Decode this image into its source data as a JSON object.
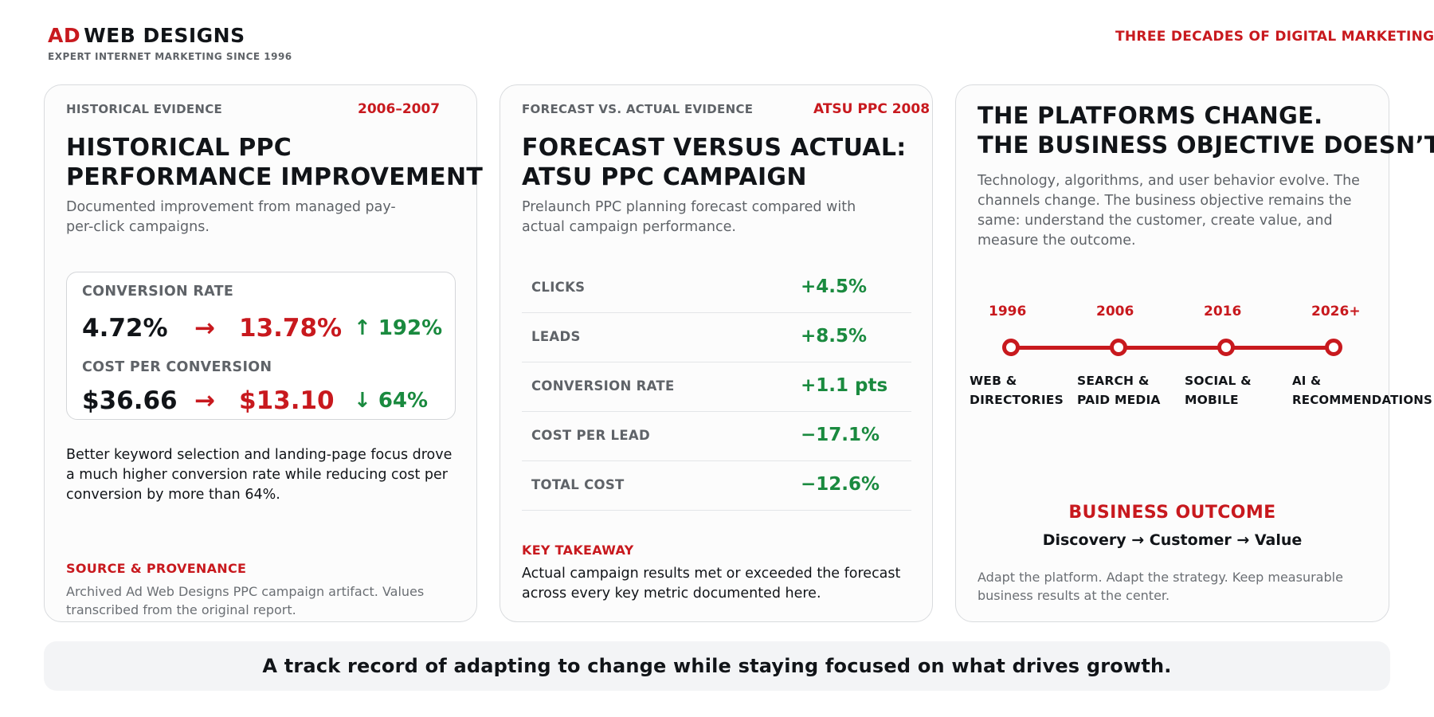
{
  "header": {
    "brand_ad": "AD",
    "brand_rest": "WEB DESIGNS",
    "tagline": "EXPERT INTERNET MARKETING SINCE 1996",
    "right_text": "THREE DECADES OF DIGITAL MARKETING"
  },
  "card1": {
    "kicker": "HISTORICAL EVIDENCE",
    "years": "2006–2007",
    "title_line1": "HISTORICAL PPC",
    "title_line2": "PERFORMANCE IMPROVEMENT",
    "subtitle": "Documented improvement from managed pay-per-click campaigns.",
    "metrics": [
      {
        "label": "CONVERSION RATE",
        "before": "4.72%",
        "arrow": "→",
        "after": "13.78%",
        "change": "↑ 192%"
      },
      {
        "label": "COST PER CONVERSION",
        "before": "$36.66",
        "arrow": "→",
        "after": "$13.10",
        "change": "↓ 64%"
      }
    ],
    "body": "Better keyword selection and landing-page focus drove a much higher conversion rate while reducing cost per conversion by more than 64%.",
    "source_label": "SOURCE & PROVENANCE",
    "source_text": "Archived Ad Web Designs PPC campaign artifact. Values transcribed from the original report."
  },
  "card2": {
    "kicker": "FORECAST VS. ACTUAL EVIDENCE",
    "campaign": "ATSU PPC 2008",
    "title_line1": "FORECAST VERSUS ACTUAL:",
    "title_line2": "ATSU PPC CAMPAIGN",
    "subtitle": "Prelaunch PPC planning forecast compared with actual campaign performance.",
    "rows": [
      {
        "label": "CLICKS",
        "value": "+4.5%"
      },
      {
        "label": "LEADS",
        "value": "+8.5%"
      },
      {
        "label": "CONVERSION RATE",
        "value": "+1.1 pts"
      },
      {
        "label": "COST PER LEAD",
        "value": "−17.1%"
      },
      {
        "label": "TOTAL COST",
        "value": "−12.6%"
      }
    ],
    "takeaway_label": "KEY TAKEAWAY",
    "takeaway_text": "Actual campaign results met or exceeded the forecast across every key metric documented here."
  },
  "card3": {
    "title_line1": "THE PLATFORMS CHANGE.",
    "title_line2": "THE BUSINESS OBJECTIVE DOESN’T.",
    "body": "Technology, algorithms, and user behavior evolve. The channels change. The business objective remains the same: understand the customer, create value, and measure the outcome.",
    "timeline": [
      {
        "year": "1996",
        "line1": "WEB &",
        "line2": "DIRECTORIES"
      },
      {
        "year": "2006",
        "line1": "SEARCH &",
        "line2": "PAID MEDIA"
      },
      {
        "year": "2016",
        "line1": "SOCIAL &",
        "line2": "MOBILE"
      },
      {
        "year": "2026+",
        "line1": "AI &",
        "line2": "RECOMMENDATIONS"
      }
    ],
    "outcome_title": "BUSINESS OUTCOME",
    "outcome_flow": "Discovery → Customer → Value",
    "closing": "Adapt the platform. Adapt the strategy. Keep measurable business results at the center."
  },
  "footer": {
    "text": "A track record of adapting to change while staying focused on what drives growth."
  },
  "colors": {
    "accent_red": "#c8191e",
    "positive_green": "#1a8a3f",
    "muted_gray": "#5f6368"
  }
}
